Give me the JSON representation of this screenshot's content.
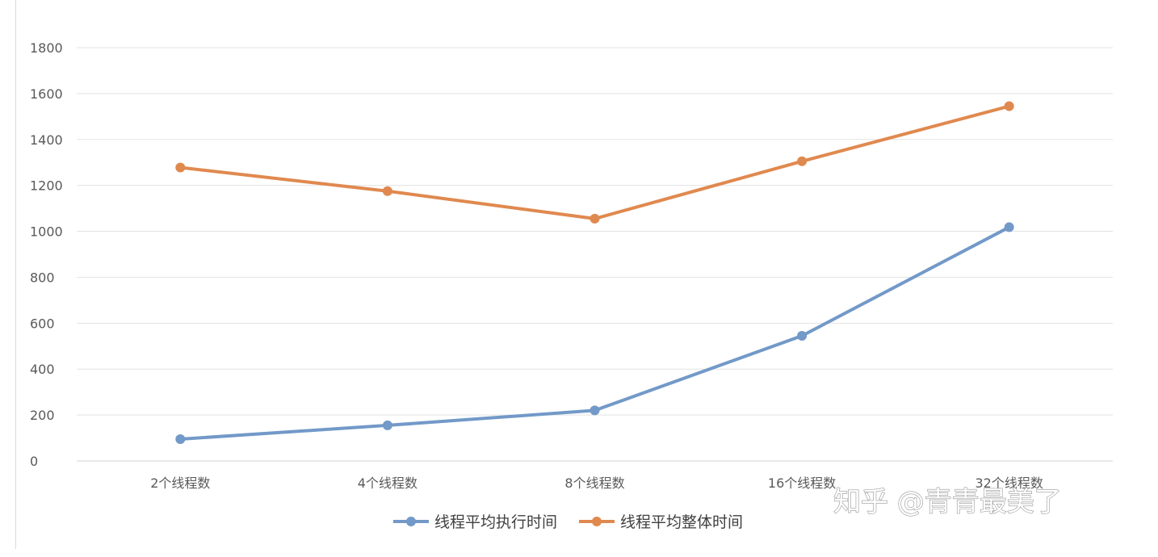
{
  "chart_data": {
    "type": "line",
    "categories": [
      "2个线程数",
      "4个线程数",
      "8个线程数",
      "16个线程数",
      "32个线程数"
    ],
    "series": [
      {
        "name": "线程平均执行时间",
        "values": [
          95,
          155,
          220,
          545,
          1018
        ],
        "color": "#7299c8"
      },
      {
        "name": "线程平均整体时间",
        "values": [
          1278,
          1175,
          1055,
          1305,
          1545
        ],
        "color": "#e0894f"
      }
    ],
    "ylim": [
      0,
      1800
    ],
    "yticks": [
      0,
      200,
      400,
      600,
      800,
      1000,
      1200,
      1400,
      1600,
      1800
    ],
    "grid": true,
    "legend_position": "bottom-center"
  },
  "watermark": {
    "text": "知乎 @青青最美了"
  }
}
